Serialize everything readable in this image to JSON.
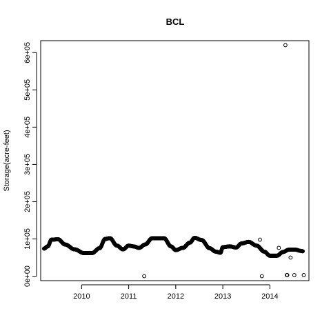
{
  "chart_data": {
    "type": "scatter",
    "title": "BCL",
    "xlabel": "",
    "ylabel": "Storage(acre-feet)",
    "xlim": [
      2009.13,
      2014.83
    ],
    "ylim": [
      -12000,
      632000
    ],
    "xticks": [
      {
        "value": 2010,
        "label": "2010"
      },
      {
        "value": 2011,
        "label": "2011"
      },
      {
        "value": 2012,
        "label": "2012"
      },
      {
        "value": 2013,
        "label": "2013"
      },
      {
        "value": 2014,
        "label": "2014"
      }
    ],
    "yticks": [
      {
        "value": 0,
        "label": "0e+00"
      },
      {
        "value": 100000,
        "label": "1e+05"
      },
      {
        "value": 200000,
        "label": "2e+05"
      },
      {
        "value": 300000,
        "label": "3e+05"
      },
      {
        "value": 400000,
        "label": "4e+05"
      },
      {
        "value": 500000,
        "label": "5e+05"
      },
      {
        "value": 600000,
        "label": "6e+05"
      }
    ],
    "grid": false,
    "legend": "none",
    "series": [
      {
        "marker": "open-circle",
        "trend_knots": [
          [
            2009.2,
            74000
          ],
          [
            2009.28,
            80000
          ],
          [
            2009.36,
            98000
          ],
          [
            2009.5,
            99000
          ],
          [
            2009.65,
            85000
          ],
          [
            2009.85,
            72000
          ],
          [
            2010.05,
            62000
          ],
          [
            2010.22,
            62000
          ],
          [
            2010.38,
            75000
          ],
          [
            2010.5,
            100000
          ],
          [
            2010.6,
            102000
          ],
          [
            2010.75,
            82000
          ],
          [
            2010.88,
            72000
          ],
          [
            2011.0,
            82000
          ],
          [
            2011.1,
            80000
          ],
          [
            2011.22,
            76000
          ],
          [
            2011.35,
            85000
          ],
          [
            2011.5,
            102000
          ],
          [
            2011.75,
            102000
          ],
          [
            2011.9,
            80000
          ],
          [
            2012.0,
            70000
          ],
          [
            2012.15,
            76000
          ],
          [
            2012.3,
            90000
          ],
          [
            2012.4,
            103000
          ],
          [
            2012.55,
            97000
          ],
          [
            2012.72,
            75000
          ],
          [
            2012.85,
            66000
          ],
          [
            2012.95,
            63000
          ],
          [
            2013.0,
            78000
          ],
          [
            2013.15,
            80000
          ],
          [
            2013.28,
            77000
          ],
          [
            2013.4,
            88000
          ],
          [
            2013.55,
            92000
          ],
          [
            2013.72,
            82000
          ],
          [
            2013.88,
            66000
          ],
          [
            2014.0,
            55000
          ],
          [
            2014.15,
            55000
          ],
          [
            2014.28,
            65000
          ],
          [
            2014.4,
            71000
          ],
          [
            2014.55,
            71000
          ],
          [
            2014.65,
            68000
          ],
          [
            2014.7,
            67000
          ]
        ],
        "outliers": [
          [
            2011.33,
            0
          ],
          [
            2013.79,
            98000
          ],
          [
            2013.82,
            72000
          ],
          [
            2013.83,
            0
          ],
          [
            2014.19,
            76000
          ],
          [
            2014.33,
            620000
          ],
          [
            2014.36,
            3000
          ],
          [
            2014.37,
            3000
          ],
          [
            2014.44,
            50000
          ],
          [
            2014.52,
            3000
          ],
          [
            2014.72,
            3000
          ]
        ]
      }
    ]
  }
}
